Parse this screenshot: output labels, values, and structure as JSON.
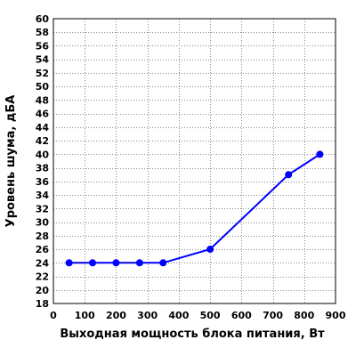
{
  "chart_data": {
    "type": "line",
    "title": "",
    "xlabel": "Выходная мощность блока питания, Вт",
    "ylabel": "Уровень шума, дБА",
    "xlim": [
      0,
      900
    ],
    "ylim": [
      18,
      60
    ],
    "x_ticks": [
      0,
      100,
      200,
      300,
      400,
      500,
      600,
      700,
      800,
      900
    ],
    "y_ticks": [
      18,
      20,
      22,
      24,
      26,
      28,
      30,
      32,
      34,
      36,
      38,
      40,
      42,
      44,
      46,
      48,
      50,
      52,
      54,
      56,
      58,
      60
    ],
    "grid": true,
    "series": [
      {
        "color": "#0000ff",
        "x": [
          50,
          125,
          200,
          275,
          350,
          500,
          750,
          850
        ],
        "y": [
          24,
          24,
          24,
          24,
          24,
          26,
          37,
          40
        ]
      }
    ]
  }
}
